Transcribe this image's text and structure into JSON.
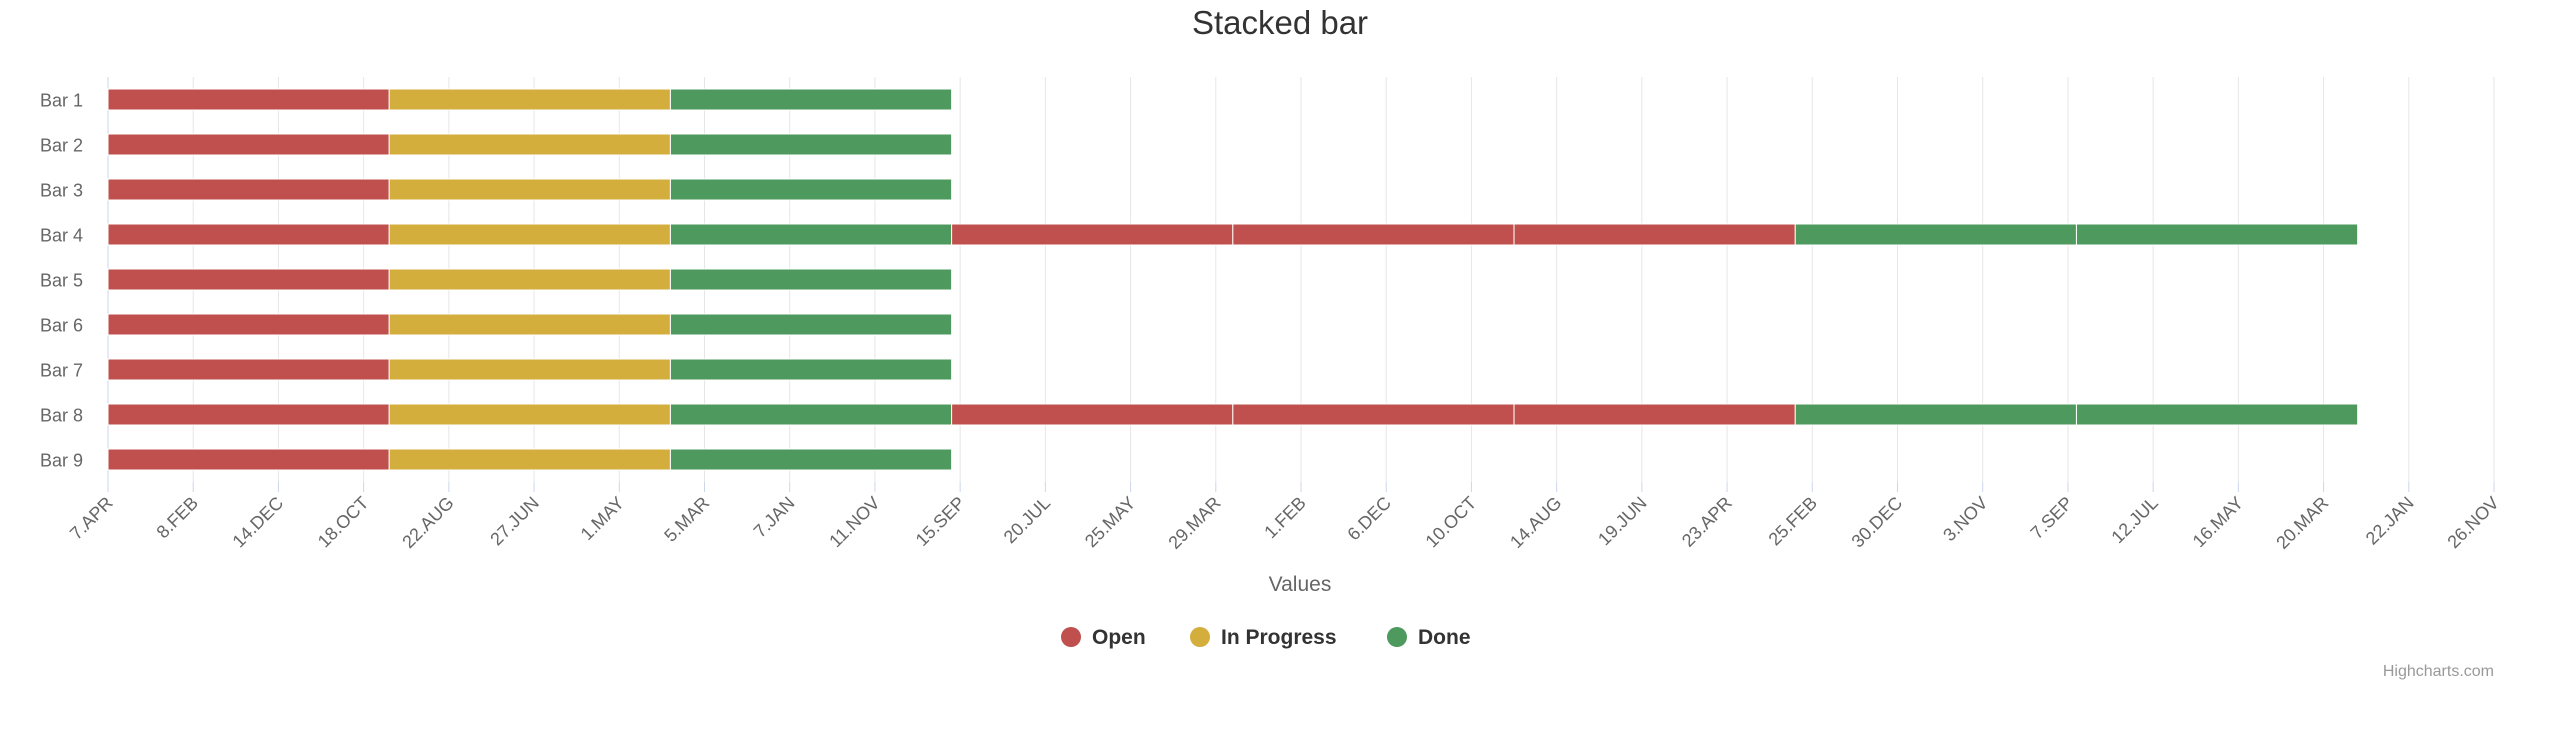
{
  "chart_data": {
    "type": "bar",
    "orientation": "horizontal",
    "stacked": true,
    "title": "Stacked bar",
    "xlabel": "Values",
    "ylabel": "",
    "categories": [
      "Bar 1",
      "Bar 2",
      "Bar 3",
      "Bar 4",
      "Bar 5",
      "Bar 6",
      "Bar 7",
      "Bar 8",
      "Bar 9"
    ],
    "x_tick_labels": [
      "7.APR",
      "8.FEB",
      "14.DEC",
      "18.OCT",
      "22.AUG",
      "27.JUN",
      "1.MAY",
      "5.MAR",
      "7.JAN",
      "11.NOV",
      "15.SEP",
      "20.JUL",
      "25.MAY",
      "29.MAR",
      "1.FEB",
      "6.DEC",
      "10.OCT",
      "14.AUG",
      "19.JUN",
      "23.APR",
      "25.FEB",
      "30.DEC",
      "3.NOV",
      "7.SEP",
      "12.JUL",
      "16.MAY",
      "20.MAR",
      "22.JAN",
      "26.NOV"
    ],
    "xlim": [
      0,
      28
    ],
    "series": [
      {
        "name": "Open",
        "color": "#c0504d",
        "values": [
          3.3,
          3.3,
          3.3,
          3.3,
          3.3,
          3.3,
          3.3,
          3.3,
          3.3
        ],
        "extra_segments": {
          "Bar 4": [
            [
              9.9,
              13.2
            ],
            [
              13.2,
              16.5
            ],
            [
              16.5,
              19.8
            ]
          ],
          "Bar 8": [
            [
              9.9,
              13.2
            ],
            [
              13.2,
              16.5
            ],
            [
              16.5,
              19.8
            ]
          ]
        }
      },
      {
        "name": "In Progress",
        "color": "#d4ae3c",
        "values": [
          3.3,
          3.3,
          3.3,
          3.3,
          3.3,
          3.3,
          3.3,
          3.3,
          3.3
        ]
      },
      {
        "name": "Done",
        "color": "#4e9a5e",
        "values": [
          3.3,
          3.3,
          3.3,
          3.3,
          3.3,
          3.3,
          3.3,
          3.3,
          3.3
        ],
        "extra_segments": {
          "Bar 4": [
            [
              19.8,
              23.1
            ],
            [
              23.1,
              26.4
            ]
          ],
          "Bar 8": [
            [
              19.8,
              23.1
            ],
            [
              23.1,
              26.4
            ]
          ]
        }
      }
    ],
    "grid": true,
    "legend": "bottom-center"
  },
  "credits": "Highcharts.com"
}
